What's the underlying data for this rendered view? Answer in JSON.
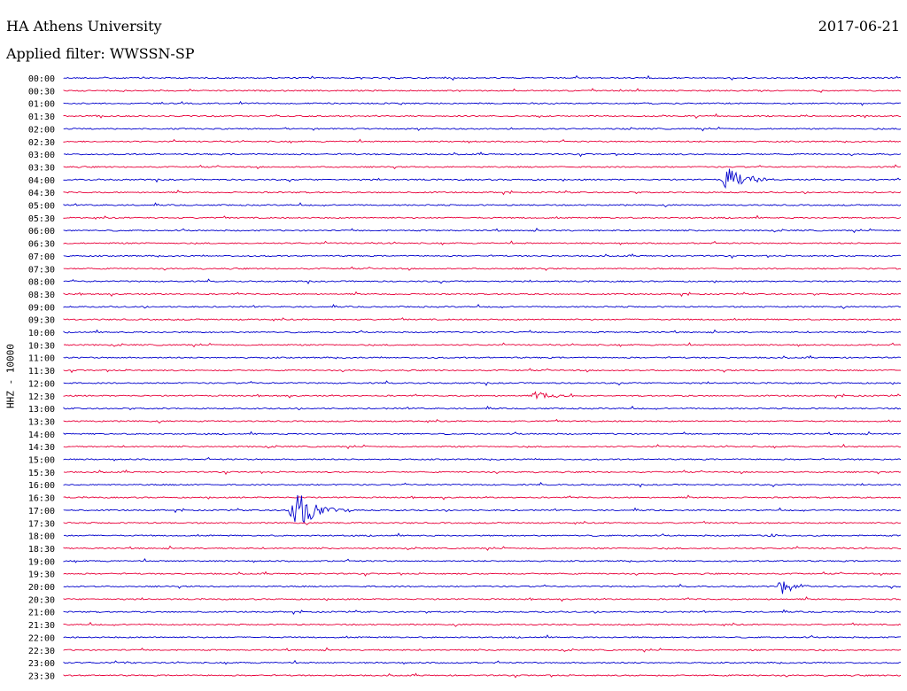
{
  "header": {
    "station": "HA Athens University",
    "date": "2017-06-21",
    "filter": "Applied filter: WWSSN-SP"
  },
  "chart_data": {
    "type": "line",
    "title": "HA Athens University",
    "subtitle": "Applied filter: WWSSN-SP",
    "ylabel": "HHZ - 10000",
    "colors": [
      "#0000cc",
      "#e8003a"
    ],
    "row_labels": [
      "00:00",
      "00:30",
      "01:00",
      "01:30",
      "02:00",
      "02:30",
      "03:00",
      "03:30",
      "04:00",
      "04:30",
      "05:00",
      "05:30",
      "06:00",
      "06:30",
      "07:00",
      "07:30",
      "08:00",
      "08:30",
      "09:00",
      "09:30",
      "10:00",
      "10:30",
      "11:00",
      "11:30",
      "12:00",
      "12:30",
      "13:00",
      "13:30",
      "14:00",
      "14:30",
      "15:00",
      "15:30",
      "16:00",
      "16:30",
      "17:00",
      "17:30",
      "18:00",
      "18:30",
      "19:00",
      "19:30",
      "20:00",
      "20:30",
      "21:00",
      "21:30",
      "22:00",
      "22:30",
      "23:00",
      "23:30"
    ],
    "row_duration_min": 30,
    "events": [
      {
        "row": "04:00",
        "minute": 23.6,
        "amplitude": 1.1,
        "duration_min": 2.0,
        "color": "blue"
      },
      {
        "row": "12:30",
        "minute": 16.8,
        "amplitude": 0.45,
        "duration_min": 1.6,
        "color": "red"
      },
      {
        "row": "17:00",
        "minute": 8.1,
        "amplitude": 1.9,
        "duration_min": 2.2,
        "color": "blue"
      },
      {
        "row": "18:00",
        "minute": 25.2,
        "amplitude": 0.25,
        "duration_min": 0.6,
        "color": "blue"
      },
      {
        "row": "20:00",
        "minute": 25.6,
        "amplitude": 0.65,
        "duration_min": 1.4,
        "color": "blue"
      },
      {
        "row": "23:00",
        "minute": 2.1,
        "amplitude": 0.12,
        "duration_min": 0.5,
        "color": "blue"
      }
    ]
  }
}
